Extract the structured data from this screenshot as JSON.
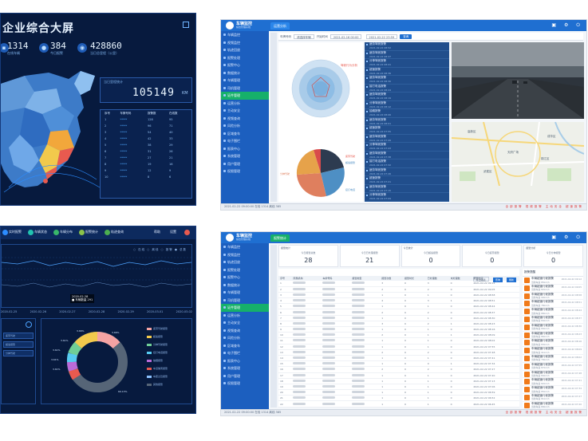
{
  "big_screen": {
    "title": "企业综合大屏",
    "stats": [
      {
        "value": "1314",
        "label": "在线车辆"
      },
      {
        "value": "384",
        "label": "今日报警"
      },
      {
        "value": "428860",
        "label": "当日总里程（公里）"
      }
    ],
    "mileage_card": {
      "tag": "当日里程统计",
      "value": "105149",
      "unit": "KM"
    },
    "table_header": [
      "序号",
      "车牌号码",
      "报警数",
      "在线数"
    ],
    "table_rows": [
      [
        "1",
        "*****",
        "128",
        "95"
      ],
      [
        "2",
        "*****",
        "96",
        "71"
      ],
      [
        "3",
        "*****",
        "54",
        "40"
      ],
      [
        "4",
        "*****",
        "42",
        "33"
      ],
      [
        "5",
        "*****",
        "38",
        "29"
      ],
      [
        "6",
        "*****",
        "31",
        "26"
      ],
      [
        "7",
        "*****",
        "27",
        "21"
      ],
      [
        "8",
        "*****",
        "19",
        "16"
      ],
      [
        "9",
        "*****",
        "12",
        "9"
      ],
      [
        "10",
        "*****",
        "8",
        "6"
      ]
    ]
  },
  "app_common": {
    "brand": "车辆监控",
    "brand_sub": "综合管理系统",
    "status_left": "2021-02-22 09:00:00 在线 1314 离线 385",
    "status_right": "全部报警 视频报警 主动安全 超速报警",
    "sidebar": [
      "车辆监控",
      "视频监控",
      "轨迹回放",
      "报警处理",
      "报警中心",
      "数据统计",
      "车辆管理",
      "司机管理",
      "证件管理",
      "运营分析",
      "主动安全",
      "视频查询",
      "风险分析",
      "区域查车",
      "电子围栏",
      "报表中心",
      "系统管理",
      "用户管理",
      "权限管理"
    ],
    "sidebar_active": 8
  },
  "panel_b": {
    "tab": "运营分析",
    "filter_label": "车牌号码",
    "filter_value": "请选择车辆",
    "time_label": "开始时间",
    "time_start": "2021-02-16 00:00",
    "time_end": "2021-02-22 23:59",
    "query": "查询",
    "vtabs": [
      "驾驶行为",
      "报警统计"
    ],
    "radar_legend": "驾驶行为分析",
    "pie_labels": [
      "疲劳驾驶",
      "超速报警",
      "分神驾驶",
      "接打电话",
      "抽烟报警"
    ],
    "list_title": "实时报警",
    "list_items": [
      {
        "name": "疲劳驾驶报警",
        "time": "2021-02-22 08:52"
      },
      {
        "name": "疲劳驾驶报警",
        "time": "2021-02-22 08:47"
      },
      {
        "name": "分神驾驶报警",
        "time": "2021-02-22 08:41"
      },
      {
        "name": "超速报警",
        "time": "2021-02-22 08:36"
      },
      {
        "name": "疲劳驾驶报警",
        "time": "2021-02-22 08:30"
      },
      {
        "name": "接打电话报警",
        "time": "2021-02-22 08:24"
      },
      {
        "name": "疲劳驾驶报警",
        "time": "2021-02-22 08:19"
      },
      {
        "name": "分神驾驶报警",
        "time": "2021-02-22 08:12"
      },
      {
        "name": "抽烟报警",
        "time": "2021-02-22 08:06"
      },
      {
        "name": "疲劳驾驶报警",
        "time": "2021-02-22 08:01"
      },
      {
        "name": "超速报警",
        "time": "2021-02-22 07:55"
      },
      {
        "name": "疲劳驾驶报警",
        "time": "2021-02-22 07:49"
      },
      {
        "name": "分神驾驶报警",
        "time": "2021-02-22 07:43"
      },
      {
        "name": "疲劳驾驶报警",
        "time": "2021-02-22 07:38"
      },
      {
        "name": "接打电话报警",
        "time": "2021-02-22 07:32"
      },
      {
        "name": "疲劳驾驶报警",
        "time": "2021-02-22 07:26"
      },
      {
        "name": "超速报警",
        "time": "2021-02-22 07:21"
      },
      {
        "name": "疲劳驾驶报警",
        "time": "2021-02-22 07:15"
      },
      {
        "name": "分神驾驶报警",
        "time": "2021-02-22 07:09"
      }
    ],
    "map_labels": [
      "高新区",
      "天府广场",
      "锦江区",
      "武侯区",
      "成华区"
    ]
  },
  "panel_c": {
    "tabs": [
      "实时报警",
      "车辆状态",
      "车辆分布",
      "报警统计",
      "轨迹查询"
    ],
    "right_tabs": [
      "帮助",
      "设置"
    ],
    "legend": "○ 在线  ○ 离线  ○ 报警  ● 总数",
    "tooltip_date": "2020-02-28",
    "tooltip_value": "■ 车辆数量 291",
    "x_dates": [
      "2020-02-25",
      "2020-02-26",
      "2020-02-27",
      "2020-02-28",
      "2020-02-29",
      "2020-03-01",
      "2020-03-02"
    ],
    "left_rows": [
      "疲劳驾驶",
      "超速报警",
      "分神驾驶"
    ],
    "donut_legend": [
      "疲劳驾驶报警",
      "超速报警",
      "分神驾驶报警",
      "接打电话报警",
      "抽烟报警",
      "车道偏离报警",
      "车距过近报警",
      "其他报警"
    ],
    "donut_labels": [
      "3.66%",
      "3.66%",
      "3.61%",
      "3.61%",
      "3.61%",
      "3.61%",
      "69.13%"
    ]
  },
  "panel_d": {
    "tab": "报警统计",
    "cards": [
      {
        "header": "报警统计",
        "label": "今日报警总数",
        "value": "28"
      },
      {
        "header": "",
        "label": "今日已处理报警",
        "value": "21"
      },
      {
        "header": "今日统计",
        "label": "今日超速报警",
        "value": "0"
      },
      {
        "header": "",
        "label": "今日疲劳报警",
        "value": "0"
      },
      {
        "header": "报警分析",
        "label": "今日分神报警",
        "value": "0"
      }
    ],
    "tools": [
      "导出报表",
      "查询",
      "刷新"
    ],
    "table_headers": [
      "序号",
      "所属机构",
      "车牌号码",
      "报警类型",
      "报警次数",
      "报警时长",
      "已处理数",
      "未处理数",
      "报警时间"
    ],
    "table_rows": [
      [
        "1",
        "",
        "",
        "",
        "3",
        "0",
        "3",
        "0",
        "2021-02-22 09:12"
      ],
      [
        "2",
        "",
        "",
        "",
        "2",
        "0",
        "2",
        "0",
        "2021-02-22 09:05"
      ],
      [
        "3",
        "",
        "",
        "",
        "1",
        "0",
        "1",
        "0",
        "2021-02-22 08:58"
      ],
      [
        "4",
        "",
        "",
        "",
        "4",
        "0",
        "3",
        "1",
        "2021-02-22 08:51"
      ],
      [
        "5",
        "",
        "",
        "",
        "1",
        "0",
        "1",
        "0",
        "2021-02-22 08:44"
      ],
      [
        "6",
        "",
        "",
        "",
        "2",
        "0",
        "2",
        "0",
        "2021-02-22 08:37"
      ],
      [
        "7",
        "",
        "",
        "",
        "1",
        "0",
        "1",
        "0",
        "2021-02-22 08:30"
      ],
      [
        "8",
        "",
        "",
        "",
        "3",
        "0",
        "2",
        "1",
        "2021-02-22 08:23"
      ],
      [
        "9",
        "",
        "",
        "",
        "1",
        "0",
        "1",
        "0",
        "2021-02-22 08:16"
      ],
      [
        "10",
        "",
        "",
        "",
        "2",
        "0",
        "1",
        "1",
        "2021-02-22 08:09"
      ],
      [
        "11",
        "",
        "",
        "",
        "1",
        "0",
        "1",
        "0",
        "2021-02-22 08:02"
      ],
      [
        "12",
        "",
        "",
        "",
        "1",
        "0",
        "1",
        "0",
        "2021-02-22 07:55"
      ],
      [
        "13",
        "",
        "",
        "",
        "2",
        "0",
        "2",
        "0",
        "2021-02-22 07:48"
      ],
      [
        "14",
        "",
        "",
        "",
        "1",
        "0",
        "1",
        "0",
        "2021-02-22 07:41"
      ],
      [
        "15",
        "",
        "",
        "",
        "1",
        "0",
        "0",
        "1",
        "2021-02-22 07:34"
      ],
      [
        "16",
        "",
        "",
        "",
        "2",
        "0",
        "2",
        "0",
        "2021-02-22 07:27"
      ],
      [
        "17",
        "",
        "",
        "",
        "1",
        "0",
        "1",
        "0",
        "2021-02-22 07:20"
      ],
      [
        "18",
        "",
        "",
        "",
        "1",
        "0",
        "1",
        "0",
        "2021-02-22 07:13"
      ],
      [
        "19",
        "",
        "",
        "",
        "1",
        "0",
        "1",
        "0",
        "2021-02-22 07:06"
      ],
      [
        "20",
        "",
        "",
        "",
        "1",
        "0",
        "1",
        "0",
        "2021-02-22 06:59"
      ],
      [
        "21",
        "",
        "",
        "",
        "1",
        "0",
        "1",
        "0",
        "2021-02-22 06:52"
      ],
      [
        "22",
        "",
        "",
        "",
        "1",
        "0",
        "1",
        "0",
        "2021-02-22 06:45"
      ]
    ],
    "alerts_header": "报警提醒",
    "alerts": [
      {
        "name": "车辆超速行驶报警",
        "sub": "当前车速 85km/h",
        "time": "2021-02-22 09:12"
      },
      {
        "name": "车辆超速行驶报警",
        "sub": "当前车速 82km/h",
        "time": "2021-02-22 09:05"
      },
      {
        "name": "车辆超速行驶报警",
        "sub": "当前车速 90km/h",
        "time": "2021-02-22 08:58"
      },
      {
        "name": "车辆超速行驶报警",
        "sub": "当前车速 78km/h",
        "time": "2021-02-22 08:51"
      },
      {
        "name": "车辆超速行驶报警",
        "sub": "当前车速 88km/h",
        "time": "2021-02-22 08:44"
      },
      {
        "name": "车辆超速行驶报警",
        "sub": "当前车速 84km/h",
        "time": "2021-02-22 08:37"
      },
      {
        "name": "车辆超速行驶报警",
        "sub": "当前车速 80km/h",
        "time": "2021-02-22 08:30"
      },
      {
        "name": "车辆超速行驶报警",
        "sub": "当前车速 86km/h",
        "time": "2021-02-22 08:23"
      },
      {
        "name": "车辆超速行驶报警",
        "sub": "当前车速 83km/h",
        "time": "2021-02-22 08:16"
      },
      {
        "name": "车辆超速行驶报警",
        "sub": "当前车速 91km/h",
        "time": "2021-02-22 08:09"
      },
      {
        "name": "车辆超速行驶报警",
        "sub": "当前车速 79km/h",
        "time": "2021-02-22 08:02"
      },
      {
        "name": "车辆超速行驶报警",
        "sub": "当前车速 87km/h",
        "time": "2021-02-22 07:55"
      },
      {
        "name": "车辆超速行驶报警",
        "sub": "当前车速 84km/h",
        "time": "2021-02-22 07:48"
      },
      {
        "name": "车辆超速行驶报警",
        "sub": "当前车速 82km/h",
        "time": "2021-02-22 07:41"
      },
      {
        "name": "车辆超速行驶报警",
        "sub": "当前车速 85km/h",
        "time": "2021-02-22 07:34"
      },
      {
        "name": "车辆超速行驶报警",
        "sub": "当前车速 81km/h",
        "time": "2021-02-22 07:27"
      },
      {
        "name": "车辆超速行驶报警",
        "sub": "当前车速 89km/h",
        "time": "2021-02-22 07:20"
      }
    ]
  },
  "colors": {
    "dark_bg": "#071a3e",
    "brand_blue": "#1f6fd1",
    "active_green": "#16b06a",
    "alert_orange": "#f07a1a"
  }
}
